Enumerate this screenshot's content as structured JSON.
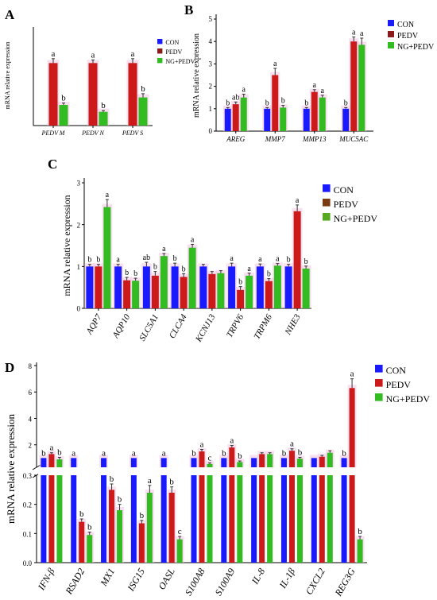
{
  "colors": {
    "CON": "#1a1aff",
    "PEDV": "#cc1a1a",
    "NGPEDV": "#33bb22",
    "highlight": "#f4c6e4"
  },
  "chart_data": [
    {
      "panel": "A",
      "type": "bar",
      "ylabel": "mRNA relative expression",
      "ylim": [
        0,
        1.5
      ],
      "yticks": [],
      "legend": [
        "CON",
        "PEDV",
        "NG+PEDV"
      ],
      "legend_colors": [
        "#1a1aff",
        "#8b1a1a",
        "#33bb22"
      ],
      "categories": [
        "PEDV M",
        "PEDV N",
        "PEDV S"
      ],
      "series": [
        {
          "name": "CON",
          "values": [
            0,
            0,
            0
          ],
          "err": [
            0,
            0,
            0
          ]
        },
        {
          "name": "PEDV",
          "values": [
            1.0,
            1.0,
            1.0
          ],
          "err": [
            0.07,
            0.05,
            0.07
          ]
        },
        {
          "name": "NG+PEDV",
          "values": [
            0.33,
            0.22,
            0.45
          ],
          "err": [
            0.03,
            0.02,
            0.06
          ]
        }
      ],
      "letters": [
        [
          "",
          "a",
          "b"
        ],
        [
          "",
          "a",
          "b"
        ],
        [
          "",
          "a",
          "b"
        ]
      ]
    },
    {
      "panel": "B",
      "type": "bar",
      "ylabel": "mRNA relative expression",
      "ylim": [
        0,
        5
      ],
      "yticks": [
        "0",
        "1",
        "2",
        "3",
        "4",
        "5"
      ],
      "legend": [
        "CON",
        "PEDV",
        "NG+PEDV"
      ],
      "legend_colors": [
        "#1a1aff",
        "#8b1a1a",
        "#33bb22"
      ],
      "categories": [
        "AREG",
        "MMP7",
        "MMP13",
        "MUC5AC"
      ],
      "series": [
        {
          "name": "CON",
          "values": [
            1.0,
            1.0,
            1.0,
            1.0
          ],
          "err": [
            0.05,
            0.05,
            0.05,
            0.05
          ]
        },
        {
          "name": "PEDV",
          "values": [
            1.2,
            2.5,
            1.75,
            4.0
          ],
          "err": [
            0.1,
            0.3,
            0.1,
            0.2
          ]
        },
        {
          "name": "NG+PEDV",
          "values": [
            1.5,
            1.05,
            1.5,
            3.85
          ],
          "err": [
            0.15,
            0.1,
            0.1,
            0.3
          ]
        }
      ],
      "letters": [
        [
          "b",
          "ab",
          "a"
        ],
        [
          "b",
          "a",
          "b"
        ],
        [
          "b",
          "a",
          "a"
        ],
        [
          "b",
          "a",
          "a"
        ]
      ]
    },
    {
      "panel": "C",
      "type": "bar",
      "ylabel": "mRNA relative expression",
      "ylim": [
        0,
        3
      ],
      "yticks": [
        "0",
        "1",
        "2",
        "3"
      ],
      "legend": [
        "CON",
        "PEDV",
        "NG+PEDV"
      ],
      "legend_colors": [
        "#1a1aff",
        "#7a3b10",
        "#55aa22"
      ],
      "categories": [
        "AQP7",
        "AQP10",
        "SLC5A1",
        "CLCA4",
        "KCNJ13",
        "TRPV6",
        "TRPM6",
        "NHE3"
      ],
      "series": [
        {
          "name": "CON",
          "values": [
            1.0,
            1.0,
            1.0,
            1.0,
            1.0,
            1.0,
            1.0,
            1.0
          ],
          "err": [
            0.05,
            0.05,
            0.1,
            0.08,
            0.05,
            0.08,
            0.06,
            0.05
          ]
        },
        {
          "name": "PEDV",
          "values": [
            1.0,
            0.67,
            0.78,
            0.75,
            0.82,
            0.44,
            0.65,
            2.32
          ],
          "err": [
            0.05,
            0.07,
            0.1,
            0.08,
            0.06,
            0.08,
            0.06,
            0.15
          ]
        },
        {
          "name": "NG+PEDV",
          "values": [
            2.42,
            0.66,
            1.25,
            1.45,
            0.84,
            0.78,
            1.02,
            0.95
          ],
          "err": [
            0.18,
            0.06,
            0.06,
            0.08,
            0.06,
            0.06,
            0.05,
            0.06
          ]
        }
      ],
      "letters": [
        [
          "b",
          "b",
          "a"
        ],
        [
          "a",
          "b",
          "b"
        ],
        [
          "ab",
          "b",
          "a"
        ],
        [
          "b",
          "b",
          "a"
        ],
        [
          "",
          "",
          ""
        ],
        [
          "a",
          "b",
          "a"
        ],
        [
          "a",
          "b",
          "a"
        ],
        [
          "b",
          "a",
          "b"
        ]
      ]
    },
    {
      "panel": "D",
      "type": "bar",
      "ylabel": "mRNA relative expression",
      "axis_break": true,
      "lower_ylim": [
        0,
        0.3
      ],
      "upper_ylim": [
        0.3,
        8
      ],
      "lower_yticks": [
        "0.0",
        "0.1",
        "0.2",
        "0.3"
      ],
      "upper_yticks": [
        "2",
        "4",
        "6",
        "8"
      ],
      "legend": [
        "CON",
        "PEDV",
        "NG+PEDV"
      ],
      "legend_colors": [
        "#1a1aff",
        "#cc1a1a",
        "#33bb22"
      ],
      "categories": [
        "IFN-β",
        "RSAD2",
        "MX1",
        "ISG15",
        "OASL",
        "S100A8",
        "S100A9",
        "IL-8",
        "IL-1β",
        "CXCL2",
        "REG3G"
      ],
      "series": [
        {
          "name": "CON",
          "values": [
            1.0,
            1.0,
            1.0,
            1.0,
            1.0,
            1.0,
            1.0,
            1.0,
            1.0,
            1.0,
            1.0
          ],
          "err": [
            0,
            0,
            0,
            0,
            0,
            0,
            0,
            0,
            0,
            0,
            0
          ]
        },
        {
          "name": "PEDV",
          "values": [
            1.3,
            0.14,
            0.25,
            0.135,
            0.24,
            1.5,
            1.8,
            1.3,
            1.55,
            1.1,
            6.3
          ],
          "err": [
            0.1,
            0.01,
            0.02,
            0.01,
            0.02,
            0.15,
            0.15,
            0.1,
            0.15,
            0.1,
            0.7
          ]
        },
        {
          "name": "NG+PEDV",
          "values": [
            0.9,
            0.095,
            0.18,
            0.24,
            0.08,
            0.55,
            0.7,
            1.3,
            0.95,
            1.4,
            0.08
          ]
        }
      ],
      "nge_err": [
        0.15,
        0.01,
        0.02,
        0.025,
        0.01,
        0.08,
        0.08,
        0.1,
        0.1,
        0.15,
        0.01
      ],
      "letters": [
        [
          "b",
          "a",
          "b"
        ],
        [
          "a",
          "b",
          "b"
        ],
        [
          "a",
          "b",
          "b"
        ],
        [
          "a",
          "b",
          "a"
        ],
        [
          "a",
          "b",
          "c"
        ],
        [
          "b",
          "a",
          "c"
        ],
        [
          "b",
          "a",
          "b"
        ],
        [
          "",
          "",
          ""
        ],
        [
          "b",
          "a",
          "b"
        ],
        [
          "",
          "",
          ""
        ],
        [
          "b",
          "a",
          "b"
        ]
      ]
    }
  ]
}
